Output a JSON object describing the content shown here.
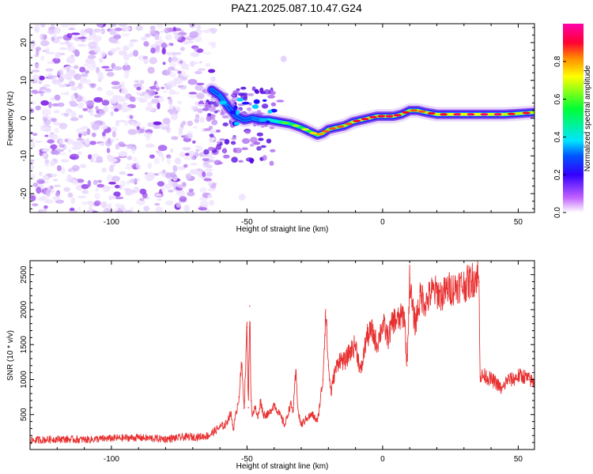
{
  "title": "PAZ1.2025.087.10.47.G24",
  "colors": {
    "snr_line": "#e83030",
    "colormap": [
      "#ffffff",
      "#f0e6ff",
      "#c9a2f5",
      "#8a2be2",
      "#3300ff",
      "#0066ff",
      "#00e5ff",
      "#00ff33",
      "#ffff00",
      "#ff6600",
      "#ff0033",
      "#ff00cc"
    ]
  },
  "chart_data": [
    {
      "type": "heatmap",
      "title": "PAZ1.2025.087.10.47.G24",
      "xlabel": "Height of straight line (km)",
      "ylabel": "Frequency (Hz)",
      "xlim": [
        -130,
        56
      ],
      "ylim": [
        -25,
        25
      ],
      "x_ticks": [
        -100,
        -50,
        0,
        50
      ],
      "y_ticks": [
        -20,
        -10,
        0,
        10,
        20
      ],
      "x_tick_labels": [
        "-100",
        "-50",
        "0",
        "50"
      ],
      "y_tick_labels": [
        "-20",
        "-10",
        "0",
        "10",
        "20"
      ],
      "colorbar": {
        "label": "Normalized spectral amplitude",
        "range": [
          0,
          1
        ],
        "ticks": [
          0,
          0.2,
          0.4,
          0.6,
          0.8
        ],
        "tick_labels": [
          "0.0",
          "0.2",
          "0.4",
          "0.6",
          "0.8"
        ]
      },
      "ridge": {
        "x": [
          -63,
          -60,
          -57,
          -54,
          -51,
          -48,
          -45,
          -42,
          -38,
          -34,
          -30,
          -27,
          -24,
          -22,
          -20,
          -17,
          -14,
          -11,
          -8,
          -5,
          -2,
          1,
          4,
          7,
          10,
          13,
          16,
          20,
          25,
          30,
          35,
          40,
          45,
          50,
          56
        ],
        "y": [
          7.5,
          6,
          3,
          0.5,
          -0.5,
          0,
          -0.5,
          -0.5,
          -1,
          -1.5,
          -2.5,
          -3.5,
          -4.5,
          -4,
          -3,
          -2.5,
          -2,
          -1,
          -0.5,
          0,
          0.5,
          0.5,
          0.5,
          1,
          2,
          2,
          1.5,
          1,
          1,
          1,
          1,
          1,
          1,
          1.2,
          1.5
        ],
        "amplitude": [
          0.35,
          0.45,
          0.4,
          0.35,
          0.4,
          0.4,
          0.45,
          0.5,
          0.6,
          0.65,
          0.7,
          0.75,
          0.8,
          0.85,
          0.85,
          0.85,
          0.85,
          0.9,
          0.9,
          0.9,
          0.9,
          0.9,
          0.9,
          0.9,
          0.85,
          0.85,
          0.9,
          0.9,
          0.95,
          0.95,
          0.95,
          0.95,
          0.9,
          0.9,
          0.9
        ]
      }
    },
    {
      "type": "line",
      "xlabel": "Height of straight line (km)",
      "ylabel": "SNR (10 * v/v)",
      "xlim": [
        -130,
        56
      ],
      "ylim": [
        0,
        2700
      ],
      "x_ticks": [
        -100,
        -50,
        0,
        50
      ],
      "y_ticks": [
        500,
        1000,
        1500,
        2000,
        2500
      ],
      "x_tick_labels": [
        "-100",
        "-50",
        "0",
        "50"
      ],
      "y_tick_labels": [
        "500",
        "1000",
        "1500",
        "2000",
        "2500"
      ],
      "series": [
        {
          "x": [
            -130,
            -120,
            -110,
            -100,
            -90,
            -80,
            -72,
            -68,
            -64,
            -62,
            -60,
            -58,
            -56,
            -55,
            -53,
            -52,
            -51,
            -50,
            -49.5,
            -49,
            -48.5,
            -48,
            -47,
            -46,
            -45,
            -44,
            -42,
            -40,
            -38,
            -36,
            -34,
            -33,
            -32,
            -31,
            -30,
            -28,
            -26,
            -24,
            -22,
            -21,
            -20,
            -19,
            -18,
            -16,
            -14,
            -12,
            -10,
            -8,
            -6,
            -4,
            -2,
            0,
            2,
            4,
            6,
            8,
            9,
            10,
            11,
            12,
            14,
            16,
            18,
            20,
            22,
            24,
            26,
            28,
            30,
            32,
            34,
            35,
            35.5,
            36,
            38,
            40,
            42,
            44,
            46,
            48,
            50,
            52,
            54,
            56
          ],
          "y": [
            130,
            150,
            140,
            160,
            170,
            150,
            180,
            180,
            200,
            260,
            320,
            350,
            520,
            300,
            750,
            1200,
            600,
            1750,
            600,
            2050,
            700,
            500,
            600,
            450,
            700,
            500,
            500,
            650,
            500,
            350,
            650,
            550,
            1100,
            500,
            350,
            450,
            500,
            400,
            1000,
            2000,
            1200,
            800,
            1050,
            1300,
            1250,
            1400,
            1500,
            1100,
            1600,
            1700,
            1500,
            1800,
            1600,
            1850,
            1850,
            1950,
            1200,
            2450,
            2000,
            1800,
            2200,
            2100,
            2250,
            2250,
            2200,
            2300,
            2300,
            2350,
            2350,
            2400,
            2450,
            2500,
            2400,
            1050,
            1050,
            1000,
            950,
            850,
            1000,
            1000,
            1050,
            1050,
            1000,
            950
          ]
        }
      ]
    }
  ]
}
